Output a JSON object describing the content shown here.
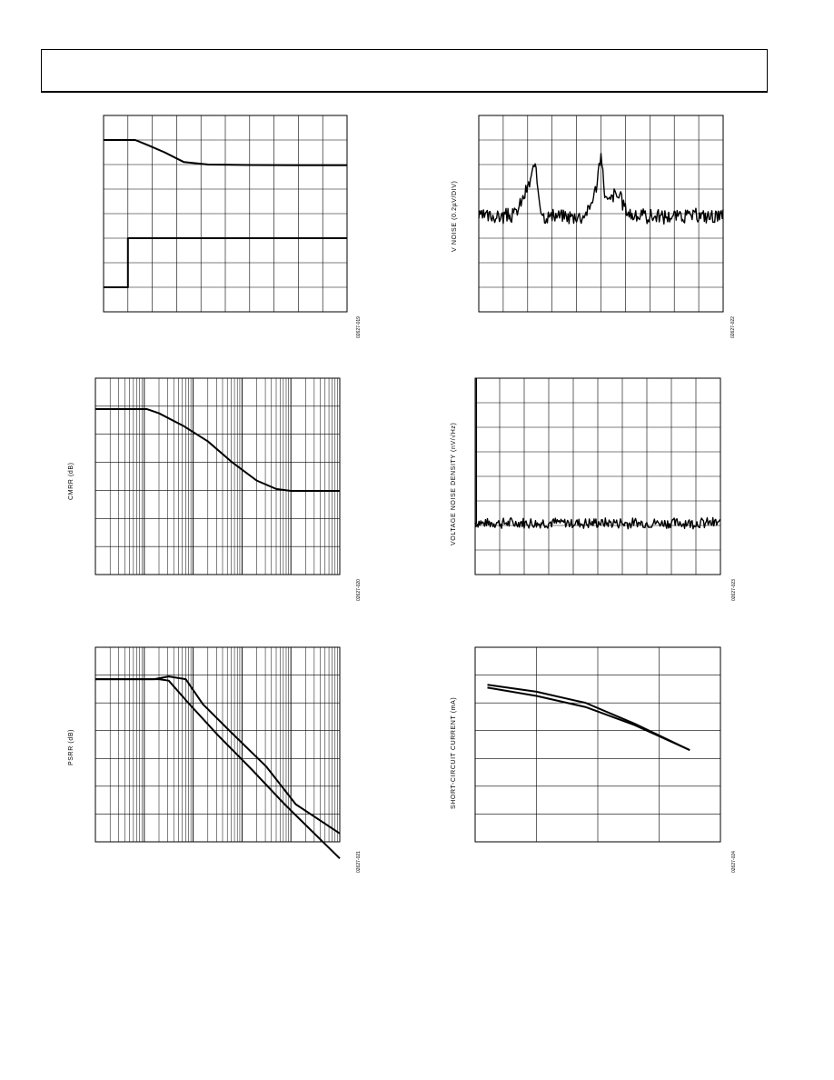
{
  "page": {
    "header_text": ""
  },
  "chart_data": [
    {
      "id": "c1",
      "type": "line",
      "xlabel": "",
      "ylabel": "",
      "grid": "linear",
      "grid_cols": 10,
      "grid_rows": 8,
      "xlim": [
        0,
        10
      ],
      "ylim": [
        0,
        8
      ],
      "series": [
        {
          "values": [
            [
              0,
              7.0
            ],
            [
              1.3,
              7.0
            ],
            [
              1.8,
              6.8
            ],
            [
              2.5,
              6.5
            ],
            [
              3.3,
              6.1
            ],
            [
              4.3,
              6.0
            ],
            [
              6,
              5.98
            ],
            [
              8,
              5.97
            ],
            [
              10,
              5.97
            ]
          ]
        },
        {
          "values": [
            [
              0,
              1.0
            ],
            [
              1.0,
              1.0
            ],
            [
              1.0,
              3.0
            ],
            [
              5,
              3.0
            ],
            [
              10,
              3.0
            ]
          ]
        }
      ],
      "fig_code": "02627-019"
    },
    {
      "id": "c2",
      "type": "line",
      "xlabel": "",
      "ylabel": "V NOISE (0.2µV/DIV)",
      "grid": "linear",
      "grid_cols": 10,
      "grid_rows": 8,
      "xlim": [
        0,
        10
      ],
      "ylim": [
        -4,
        4
      ],
      "series": [
        {
          "noise": true,
          "baseline": -0.1,
          "amplitude": 0.35,
          "seed": 3,
          "bumps": [
            [
              2.0,
              1.0,
              0.35
            ],
            [
              2.3,
              1.4,
              0.2
            ],
            [
              4.8,
              0.9,
              0.3
            ],
            [
              5.0,
              1.6,
              0.15
            ],
            [
              5.6,
              0.9,
              0.4
            ]
          ]
        }
      ],
      "fig_code": "02627-022"
    },
    {
      "id": "c3",
      "type": "line",
      "xlabel": "",
      "ylabel": "CMRR (dB)",
      "grid": "log",
      "decades": 5,
      "grid_rows": 7,
      "xlim": [
        0,
        5
      ],
      "ylim": [
        0,
        7
      ],
      "series": [
        {
          "values": [
            [
              0,
              5.9
            ],
            [
              1.05,
              5.9
            ],
            [
              1.3,
              5.75
            ],
            [
              1.8,
              5.3
            ],
            [
              2.3,
              4.75
            ],
            [
              2.8,
              4.0
            ],
            [
              3.3,
              3.35
            ],
            [
              3.7,
              3.05
            ],
            [
              4.0,
              2.98
            ],
            [
              4.4,
              2.98
            ],
            [
              5,
              2.98
            ]
          ]
        }
      ],
      "fig_code": "02627-020"
    },
    {
      "id": "c4",
      "type": "line",
      "xlabel": "",
      "ylabel": "VOLTAGE NOISE DENSITY (nV/√Hz)",
      "grid": "linear",
      "grid_cols": 10,
      "grid_rows": 8,
      "xlim": [
        0,
        10
      ],
      "ylim": [
        0,
        8
      ],
      "series": [
        {
          "noise": true,
          "baseline": 2.1,
          "amplitude": 0.25,
          "seed": 7,
          "spike_start": 8,
          "bumps": []
        }
      ],
      "fig_code": "02627-023"
    },
    {
      "id": "c5",
      "type": "line",
      "xlabel": "",
      "ylabel": "PSRR (dB)",
      "grid": "log",
      "decades": 5,
      "grid_rows": 7,
      "xlim": [
        0,
        5
      ],
      "ylim": [
        0,
        7
      ],
      "series": [
        {
          "values": [
            [
              0,
              5.85
            ],
            [
              1.2,
              5.85
            ],
            [
              1.5,
              5.95
            ],
            [
              1.85,
              5.85
            ],
            [
              2.2,
              4.95
            ],
            [
              2.8,
              3.9
            ],
            [
              3.5,
              2.7
            ],
            [
              4.1,
              1.35
            ],
            [
              5,
              0.3
            ]
          ]
        },
        {
          "values": [
            [
              0,
              5.85
            ],
            [
              1.3,
              5.85
            ],
            [
              1.5,
              5.8
            ],
            [
              1.9,
              5.0
            ],
            [
              2.5,
              3.85
            ],
            [
              3.2,
              2.6
            ],
            [
              3.9,
              1.3
            ],
            [
              5,
              -0.6
            ]
          ]
        }
      ],
      "fig_code": "02627-021"
    },
    {
      "id": "c6",
      "type": "line",
      "xlabel": "",
      "ylabel": "SHORT-CIRCUIT CURRENT (mA)",
      "grid": "linear",
      "grid_cols": 4,
      "grid_rows": 7,
      "xlim": [
        0,
        4
      ],
      "ylim": [
        0,
        7
      ],
      "series": [
        {
          "values": [
            [
              0.2,
              5.65
            ],
            [
              1.0,
              5.4
            ],
            [
              1.8,
              5.0
            ],
            [
              2.6,
              4.25
            ],
            [
              3.5,
              3.3
            ]
          ]
        },
        {
          "values": [
            [
              0.2,
              5.55
            ],
            [
              1.0,
              5.25
            ],
            [
              1.8,
              4.85
            ],
            [
              2.6,
              4.2
            ],
            [
              3.5,
              3.3
            ]
          ]
        }
      ],
      "fig_code": "02627-024"
    }
  ]
}
